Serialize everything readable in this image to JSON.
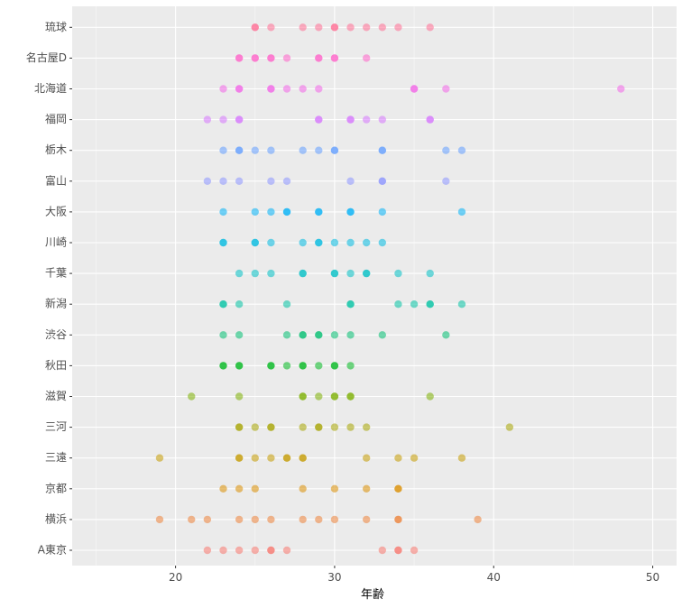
{
  "chart_data": {
    "type": "scatter",
    "title": "",
    "xlabel": "年齢",
    "ylabel": "",
    "xlim": [
      13.5,
      51.5
    ],
    "xticks": [
      20,
      30,
      40,
      50
    ],
    "grid": true,
    "legend": "none",
    "categories": [
      "A東京",
      "横浜",
      "京都",
      "三遠",
      "三河",
      "滋賀",
      "秋田",
      "渋谷",
      "新潟",
      "千葉",
      "川崎",
      "大阪",
      "富山",
      "栃木",
      "福岡",
      "北海道",
      "名古屋D",
      "琉球"
    ],
    "colors": [
      "#F8766D",
      "#EC8239",
      "#DB8E00",
      "#C49A00",
      "#A6A400",
      "#7CAE00",
      "#00B81F",
      "#00BE70",
      "#00C1A3",
      "#00BFC4",
      "#00BAE0",
      "#00B0F6",
      "#8B93FF",
      "#619CFF",
      "#D575FE",
      "#F265E7",
      "#FF61C9",
      "#FF6C91"
    ],
    "series": [
      {
        "category": "A東京",
        "x": [
          22,
          23,
          24,
          25,
          26,
          26,
          27,
          33,
          34,
          34,
          35
        ]
      },
      {
        "category": "横浜",
        "x": [
          19,
          21,
          22,
          24,
          25,
          26,
          28,
          29,
          30,
          32,
          34,
          34,
          39
        ]
      },
      {
        "category": "京都",
        "x": [
          23,
          24,
          25,
          28,
          30,
          32,
          34,
          34
        ]
      },
      {
        "category": "三遠",
        "x": [
          19,
          24,
          24,
          25,
          26,
          27,
          27,
          28,
          28,
          32,
          34,
          35,
          38
        ]
      },
      {
        "category": "三河",
        "x": [
          24,
          24,
          25,
          26,
          26,
          28,
          29,
          29,
          30,
          31,
          32,
          41
        ]
      },
      {
        "category": "滋賀",
        "x": [
          21,
          24,
          28,
          28,
          29,
          30,
          30,
          31,
          31,
          36
        ]
      },
      {
        "category": "秋田",
        "x": [
          23,
          23,
          24,
          24,
          26,
          26,
          27,
          28,
          28,
          29,
          30,
          30,
          31
        ]
      },
      {
        "category": "渋谷",
        "x": [
          23,
          24,
          27,
          28,
          28,
          29,
          29,
          30,
          31,
          33,
          37
        ]
      },
      {
        "category": "新潟",
        "x": [
          23,
          23,
          24,
          27,
          31,
          31,
          34,
          35,
          36,
          36,
          38
        ]
      },
      {
        "category": "千葉",
        "x": [
          24,
          25,
          26,
          28,
          28,
          30,
          30,
          31,
          32,
          32,
          34,
          36
        ]
      },
      {
        "category": "川崎",
        "x": [
          23,
          23,
          25,
          25,
          26,
          28,
          29,
          29,
          30,
          31,
          32,
          33
        ]
      },
      {
        "category": "大阪",
        "x": [
          23,
          25,
          26,
          27,
          27,
          29,
          29,
          31,
          31,
          33,
          38
        ]
      },
      {
        "category": "富山",
        "x": [
          22,
          23,
          24,
          26,
          27,
          31,
          33,
          33,
          37
        ]
      },
      {
        "category": "栃木",
        "x": [
          23,
          24,
          24,
          25,
          26,
          28,
          29,
          30,
          30,
          33,
          33,
          37,
          38
        ]
      },
      {
        "category": "福岡",
        "x": [
          22,
          23,
          24,
          24,
          29,
          29,
          31,
          31,
          32,
          33,
          36,
          36
        ]
      },
      {
        "category": "北海道",
        "x": [
          23,
          24,
          24,
          26,
          26,
          27,
          28,
          29,
          35,
          35,
          37,
          48
        ]
      },
      {
        "category": "名古屋D",
        "x": [
          24,
          24,
          25,
          25,
          26,
          26,
          27,
          29,
          29,
          30,
          30,
          32
        ]
      },
      {
        "category": "琉球",
        "x": [
          25,
          25,
          26,
          28,
          29,
          30,
          30,
          31,
          32,
          33,
          34,
          36
        ]
      }
    ]
  }
}
